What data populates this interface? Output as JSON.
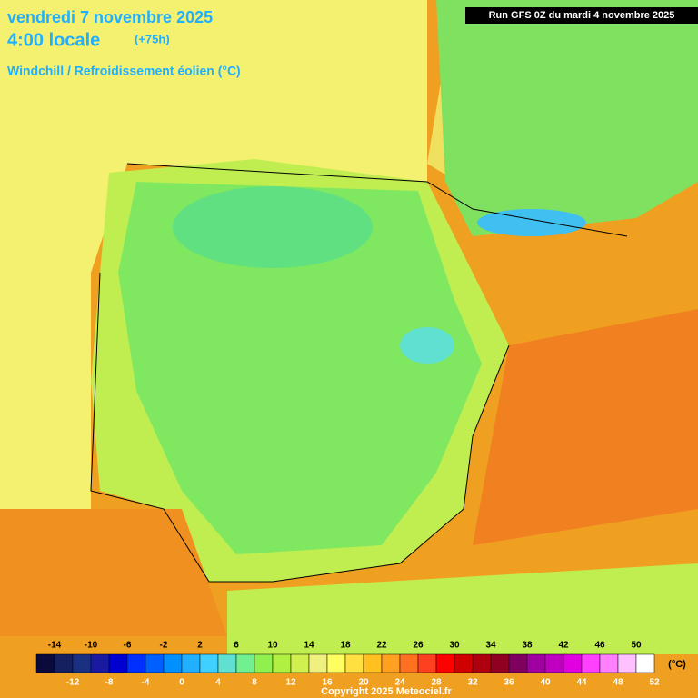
{
  "header": {
    "date": "vendredi 7 novembre 2025",
    "time": "4:00 locale",
    "lead": "(+75h)",
    "parameter": "Windchill / Refroidissement éolien (°C)",
    "run": "Run GFS 0Z du mardi 4 novembre 2025"
  },
  "legend": {
    "ticks": [
      -14,
      -12,
      -10,
      -8,
      -6,
      -4,
      -2,
      0,
      2,
      4,
      6,
      8,
      10,
      12,
      14,
      16,
      18,
      20,
      22,
      24,
      26,
      28,
      30,
      32,
      34,
      36,
      38,
      40,
      42,
      44,
      46,
      48,
      50,
      52
    ],
    "colors": [
      "#0a0a3c",
      "#142060",
      "#1a3080",
      "#1a1aa0",
      "#0000d0",
      "#0030ff",
      "#0060ff",
      "#0090ff",
      "#20b0ff",
      "#40d0ff",
      "#60e0d0",
      "#70f090",
      "#90f050",
      "#b0f040",
      "#d0f050",
      "#f0f080",
      "#ffff60",
      "#ffe040",
      "#ffc020",
      "#ffa020",
      "#ff7020",
      "#ff4020",
      "#ff0000",
      "#d00000",
      "#b00010",
      "#900020",
      "#800060",
      "#a000a0",
      "#c000c0",
      "#e000e0",
      "#ff40ff",
      "#ff80ff",
      "#ffc0ff",
      "#ffffff"
    ],
    "unit": "(°C)"
  },
  "footer": {
    "copyright": "Copyright 2025 Meteociel.fr"
  }
}
